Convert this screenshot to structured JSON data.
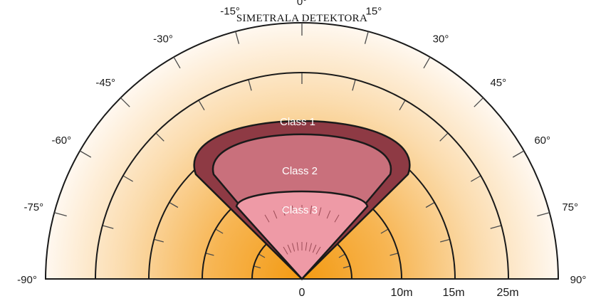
{
  "title": "SIMETRALA DETEKTORA",
  "colors": {
    "class1": "#8e3a44",
    "class2": "#c9707c",
    "class3": "#ee9aa6",
    "range_glow": "#f6a21a",
    "outline": "#1a1a1a"
  },
  "angles": [
    {
      "deg": -90,
      "label": "-90°"
    },
    {
      "deg": -75,
      "label": "-75°"
    },
    {
      "deg": -60,
      "label": "-60°"
    },
    {
      "deg": -45,
      "label": "-45°"
    },
    {
      "deg": -30,
      "label": "-30°"
    },
    {
      "deg": -15,
      "label": "-15°"
    },
    {
      "deg": 0,
      "label": "0°"
    },
    {
      "deg": 15,
      "label": "15°"
    },
    {
      "deg": 30,
      "label": "30°"
    },
    {
      "deg": 45,
      "label": "45°"
    },
    {
      "deg": 60,
      "label": "60°"
    },
    {
      "deg": 75,
      "label": "75°"
    },
    {
      "deg": 90,
      "label": "90°"
    }
  ],
  "distances": [
    {
      "key": "origin",
      "label": "0"
    },
    {
      "key": "d10",
      "label": "10m"
    },
    {
      "key": "d15",
      "label": "15m"
    },
    {
      "key": "d25",
      "label": "25m"
    }
  ],
  "classes": [
    {
      "key": "class1",
      "label": "Class 1"
    },
    {
      "key": "class2",
      "label": "Class 2"
    },
    {
      "key": "class3",
      "label": "Class 3"
    }
  ]
}
